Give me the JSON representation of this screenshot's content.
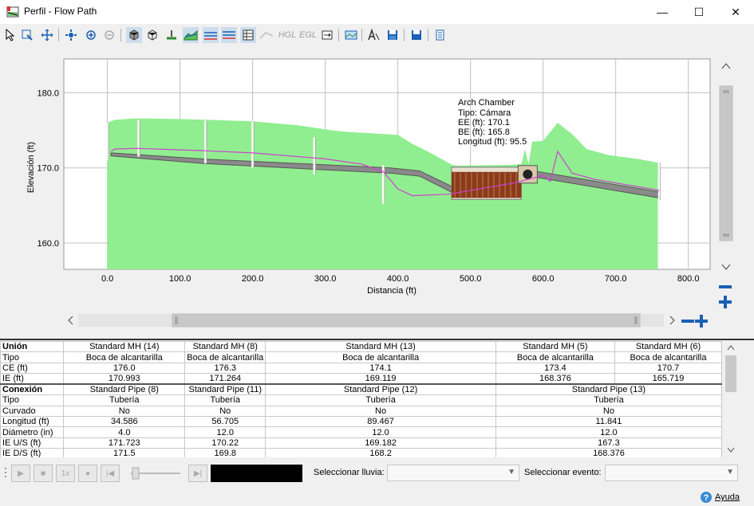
{
  "window": {
    "title": "Perfil - Flow Path",
    "minimize": "—",
    "maximize": "☐",
    "close": "✕"
  },
  "toolbar": {
    "hgl_label": "HGL",
    "egl_label": "EGL"
  },
  "chart_data": {
    "type": "profile",
    "xlabel": "Distancia (ft)",
    "ylabel": "Elevación (ft)",
    "xticks": [
      "0.0",
      "100.0",
      "200.0",
      "300.0",
      "400.0",
      "500.0",
      "600.0",
      "700.0",
      "800.0"
    ],
    "yticks": [
      "160.0",
      "170.0",
      "180.0"
    ],
    "xlim": [
      -60,
      830
    ],
    "ylim": [
      156.5,
      184.5
    ],
    "ground": [
      [
        0,
        176.0
      ],
      [
        10,
        176.4
      ],
      [
        40,
        176.6
      ],
      [
        100,
        176.5
      ],
      [
        140,
        176.4
      ],
      [
        200,
        176.2
      ],
      [
        260,
        175.7
      ],
      [
        310,
        175.0
      ],
      [
        330,
        174.8
      ],
      [
        400,
        174.4
      ],
      [
        420,
        173.2
      ],
      [
        445,
        172.0
      ],
      [
        475,
        170.4
      ],
      [
        480,
        170.3
      ],
      [
        555,
        170.4
      ],
      [
        570,
        170.5
      ],
      [
        575,
        172.5
      ],
      [
        580,
        170.5
      ],
      [
        585,
        173.5
      ],
      [
        600,
        173.6
      ],
      [
        620,
        176.0
      ],
      [
        640,
        174.5
      ],
      [
        650,
        173.5
      ],
      [
        660,
        172.5
      ],
      [
        690,
        171.7
      ],
      [
        730,
        171.2
      ],
      [
        758,
        170.7
      ]
    ],
    "hgl": [
      [
        5,
        172.2
      ],
      [
        10,
        172.5
      ],
      [
        40,
        172.6
      ],
      [
        130,
        172.3
      ],
      [
        200,
        172.0
      ],
      [
        300,
        171.2
      ],
      [
        350,
        170.5
      ],
      [
        380,
        169.5
      ],
      [
        400,
        167.2
      ],
      [
        420,
        166.3
      ],
      [
        470,
        166.5
      ],
      [
        560,
        168.0
      ],
      [
        600,
        169.0
      ],
      [
        610,
        168.2
      ],
      [
        620,
        172.2
      ],
      [
        640,
        169.3
      ],
      [
        670,
        168.5
      ],
      [
        760,
        167.0
      ]
    ],
    "pipe_top": [
      [
        5,
        172.0
      ],
      [
        130,
        171.2
      ],
      [
        390,
        170.0
      ],
      [
        430,
        169.6
      ],
      [
        490,
        166.8
      ],
      [
        575,
        169.8
      ],
      [
        760,
        166.8
      ]
    ],
    "pipe_bottom": [
      [
        5,
        171.6
      ],
      [
        130,
        170.6
      ],
      [
        390,
        169.3
      ],
      [
        430,
        168.9
      ],
      [
        490,
        166.0
      ],
      [
        575,
        169.0
      ],
      [
        760,
        166.0
      ]
    ],
    "manholes": [
      {
        "x": 0,
        "top": 176.0,
        "bottom": 170.99
      },
      {
        "x": 43,
        "top": 176.4,
        "bottom": 171.5
      },
      {
        "x": 135,
        "top": 176.3,
        "bottom": 170.6
      },
      {
        "x": 200,
        "top": 176.2,
        "bottom": 170.0
      },
      {
        "x": 285,
        "top": 174.1,
        "bottom": 169.12
      },
      {
        "x": 380,
        "top": 170.4,
        "bottom": 165.2
      },
      {
        "x": 760,
        "top": 170.7,
        "bottom": 165.72
      }
    ],
    "chamber": {
      "x0": 474,
      "x1": 570,
      "top": 170.1,
      "bottom": 165.8
    },
    "annotation": {
      "name": "Arch Chamber",
      "type": "Tipo: Cámara",
      "ee": "EE (ft): 170.1",
      "be": "BE (ft): 165.8",
      "length": "Longitud (ft): 95.5",
      "x": 475,
      "y": 178.5
    },
    "colors": {
      "ground": "#90ee90",
      "hgl": "#d040d0",
      "pipe": "#6a6a6a",
      "chamber": "#8b3a1a"
    }
  },
  "nodes_table": {
    "headers": [
      "Unión",
      "Standard MH (14)",
      "Standard MH (8)",
      "Standard MH (13)",
      "Standard MH (5)",
      "Standard MH (6)"
    ],
    "rows": [
      [
        "Tipo",
        "Boca de alcantarilla",
        "Boca de alcantarilla",
        "Boca de alcantarilla",
        "Boca de alcantarilla",
        "Boca de alcantarilla"
      ],
      [
        "CE (ft)",
        "176.0",
        "176.3",
        "174.1",
        "173.4",
        "170.7"
      ],
      [
        "IE (ft)",
        "170.993",
        "171.264",
        "169.119",
        "168.376",
        "165.719"
      ]
    ]
  },
  "links_table": {
    "headers": [
      "Conexión",
      "Standard Pipe (8)",
      "Standard Pipe (11)",
      "Standard Pipe (12)",
      "Standard Pipe (13)"
    ],
    "rows": [
      [
        "Tipo",
        "Tubería",
        "Tubería",
        "Tubería",
        "Tubería"
      ],
      [
        "Curvado",
        "No",
        "No",
        "No",
        "No"
      ],
      [
        "Longitud (ft)",
        "34.586",
        "56.705",
        "89.467",
        "11.841"
      ],
      [
        "Diámetro (in)",
        "4.0",
        "12.0",
        "12.0",
        "12.0"
      ],
      [
        "IE U/S (ft)",
        "171.723",
        "170.22",
        "169.182",
        "167.3"
      ],
      [
        "IE D/S (ft)",
        "171.5",
        "169.8",
        "168.2",
        "168.376"
      ]
    ]
  },
  "player": {
    "speed_label": "1x",
    "rain_label": "Seleccionar lluvia:",
    "event_label": "Seleccionar evento:"
  },
  "help": {
    "label": "Ayuda"
  }
}
